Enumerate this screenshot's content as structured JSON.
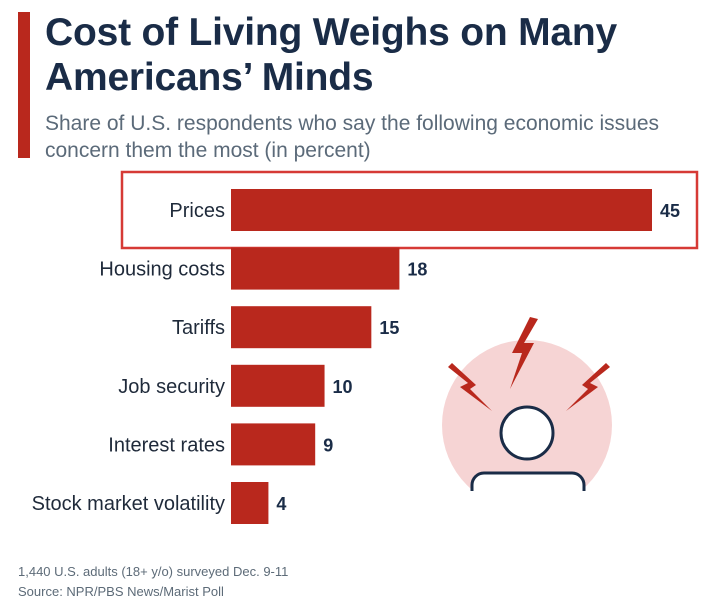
{
  "header": {
    "title": "Cost of Living Weighs on Many Americans’ Minds",
    "subtitle": "Share of U.S. respondents who say the following economic issues concern them the most (in percent)"
  },
  "chart_data": {
    "type": "bar",
    "orientation": "horizontal",
    "title": "Cost of Living Weighs on Many Americans’ Minds",
    "subtitle": "Share of U.S. respondents who say the following economic issues concern them the most (in percent)",
    "categories": [
      "Prices",
      "Housing costs",
      "Tariffs",
      "Job security",
      "Interest rates",
      "Stock market volatility"
    ],
    "values": [
      45,
      18,
      15,
      10,
      9,
      4
    ],
    "xlim": [
      0,
      45
    ],
    "grid": false,
    "highlighted_category": "Prices",
    "colors": {
      "bar": "#b9281d",
      "highlight_border": "#d63a35"
    }
  },
  "footer": {
    "note": "1,440 U.S. adults (18+ y/o) surveyed Dec. 9-11",
    "source": "Source: NPR/PBS News/Marist Poll"
  },
  "illustration": {
    "icon": "stressed-person-icon",
    "colors": {
      "circle": "#f6d4d4",
      "bolt": "#b9281d",
      "figure_stroke": "#1a2c47",
      "figure_fill": "#ffffff"
    }
  },
  "colors": {
    "accent": "#b9281d",
    "title": "#1a2c47",
    "subtitle": "#5b6a79"
  }
}
